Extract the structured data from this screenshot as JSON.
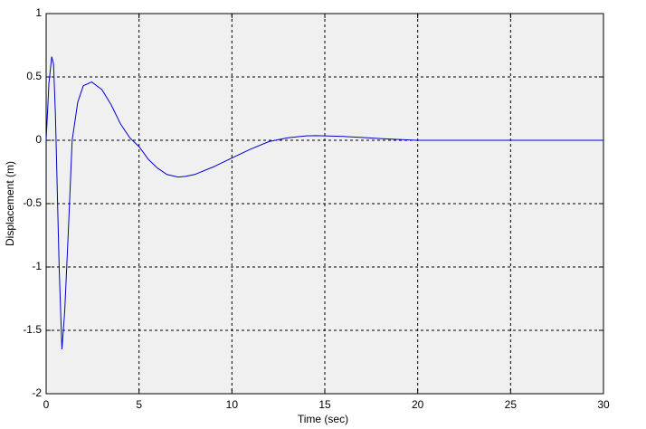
{
  "chart_data": {
    "type": "line",
    "xlabel": "Time (sec)",
    "ylabel": "Displacement (m)",
    "x": [
      0,
      0.15,
      0.3,
      0.4,
      0.5,
      0.6,
      0.7,
      0.85,
      1.0,
      1.2,
      1.4,
      1.7,
      2.0,
      2.45,
      3.0,
      3.5,
      4.0,
      4.5,
      5.0,
      5.5,
      6.0,
      6.5,
      7.1,
      7.5,
      8,
      9,
      10,
      11,
      12,
      13,
      14,
      14.5,
      15,
      16,
      17,
      18,
      19,
      20,
      22,
      25,
      30
    ],
    "series": [
      {
        "color": "#0000cc",
        "values": [
          0,
          0.45,
          0.66,
          0.6,
          0.2,
          -0.4,
          -1.0,
          -1.65,
          -1.35,
          -0.7,
          0.0,
          0.3,
          0.43,
          0.46,
          0.4,
          0.28,
          0.13,
          0.02,
          -0.05,
          -0.15,
          -0.22,
          -0.27,
          -0.29,
          -0.285,
          -0.27,
          -0.21,
          -0.14,
          -0.07,
          -0.01,
          0.02,
          0.035,
          0.037,
          0.035,
          0.03,
          0.022,
          0.013,
          0.006,
          0.0,
          0,
          0,
          0
        ]
      }
    ],
    "xlim": [
      0,
      30
    ],
    "xticks": [
      0,
      5,
      10,
      15,
      20,
      25,
      30
    ],
    "ylim": [
      -2,
      1
    ],
    "yticks": [
      -2,
      -1.5,
      -1,
      -0.5,
      0,
      0.5,
      1
    ],
    "grid": true
  }
}
